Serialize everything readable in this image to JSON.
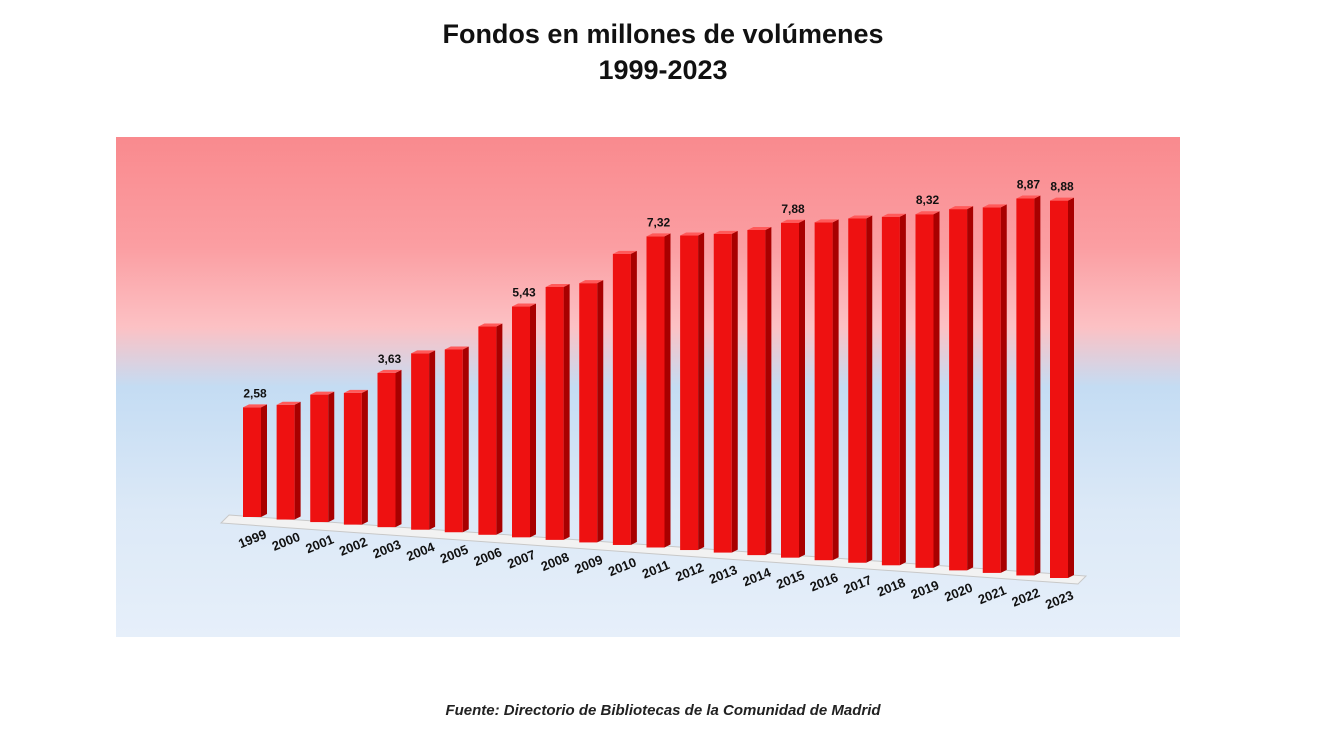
{
  "chart_data": {
    "type": "bar",
    "title": "Fondos en millones de volúmenes",
    "subtitle": "1999-2023",
    "categories": [
      "1999",
      "2000",
      "2001",
      "2002",
      "2003",
      "2004",
      "2005",
      "2006",
      "2007",
      "2008",
      "2009",
      "2010",
      "2011",
      "2012",
      "2013",
      "2014",
      "2015",
      "2016",
      "2017",
      "2018",
      "2019",
      "2020",
      "2021",
      "2022",
      "2023"
    ],
    "values": [
      2.58,
      2.7,
      3.0,
      3.1,
      3.63,
      4.15,
      4.3,
      4.9,
      5.43,
      5.95,
      6.1,
      6.85,
      7.32,
      7.4,
      7.5,
      7.65,
      7.88,
      7.95,
      8.1,
      8.2,
      8.32,
      8.5,
      8.6,
      8.87,
      8.88
    ],
    "data_labels": {
      "1999": "2,58",
      "2003": "3,63",
      "2007": "5,43",
      "2011": "7,32",
      "2015": "7,88",
      "2019": "8,32",
      "2022": "8,87",
      "2023": "8,88"
    },
    "xlabel": "",
    "ylabel": "",
    "ylim": [
      0,
      9
    ],
    "grid": false,
    "legend": "none",
    "bar_color": "#ee1111",
    "bar_top_color": "#ff5a5a",
    "bar_side_color": "#a80000"
  },
  "footer": {
    "source": "Fuente: Directorio de Bibliotecas de la Comunidad de Madrid"
  }
}
